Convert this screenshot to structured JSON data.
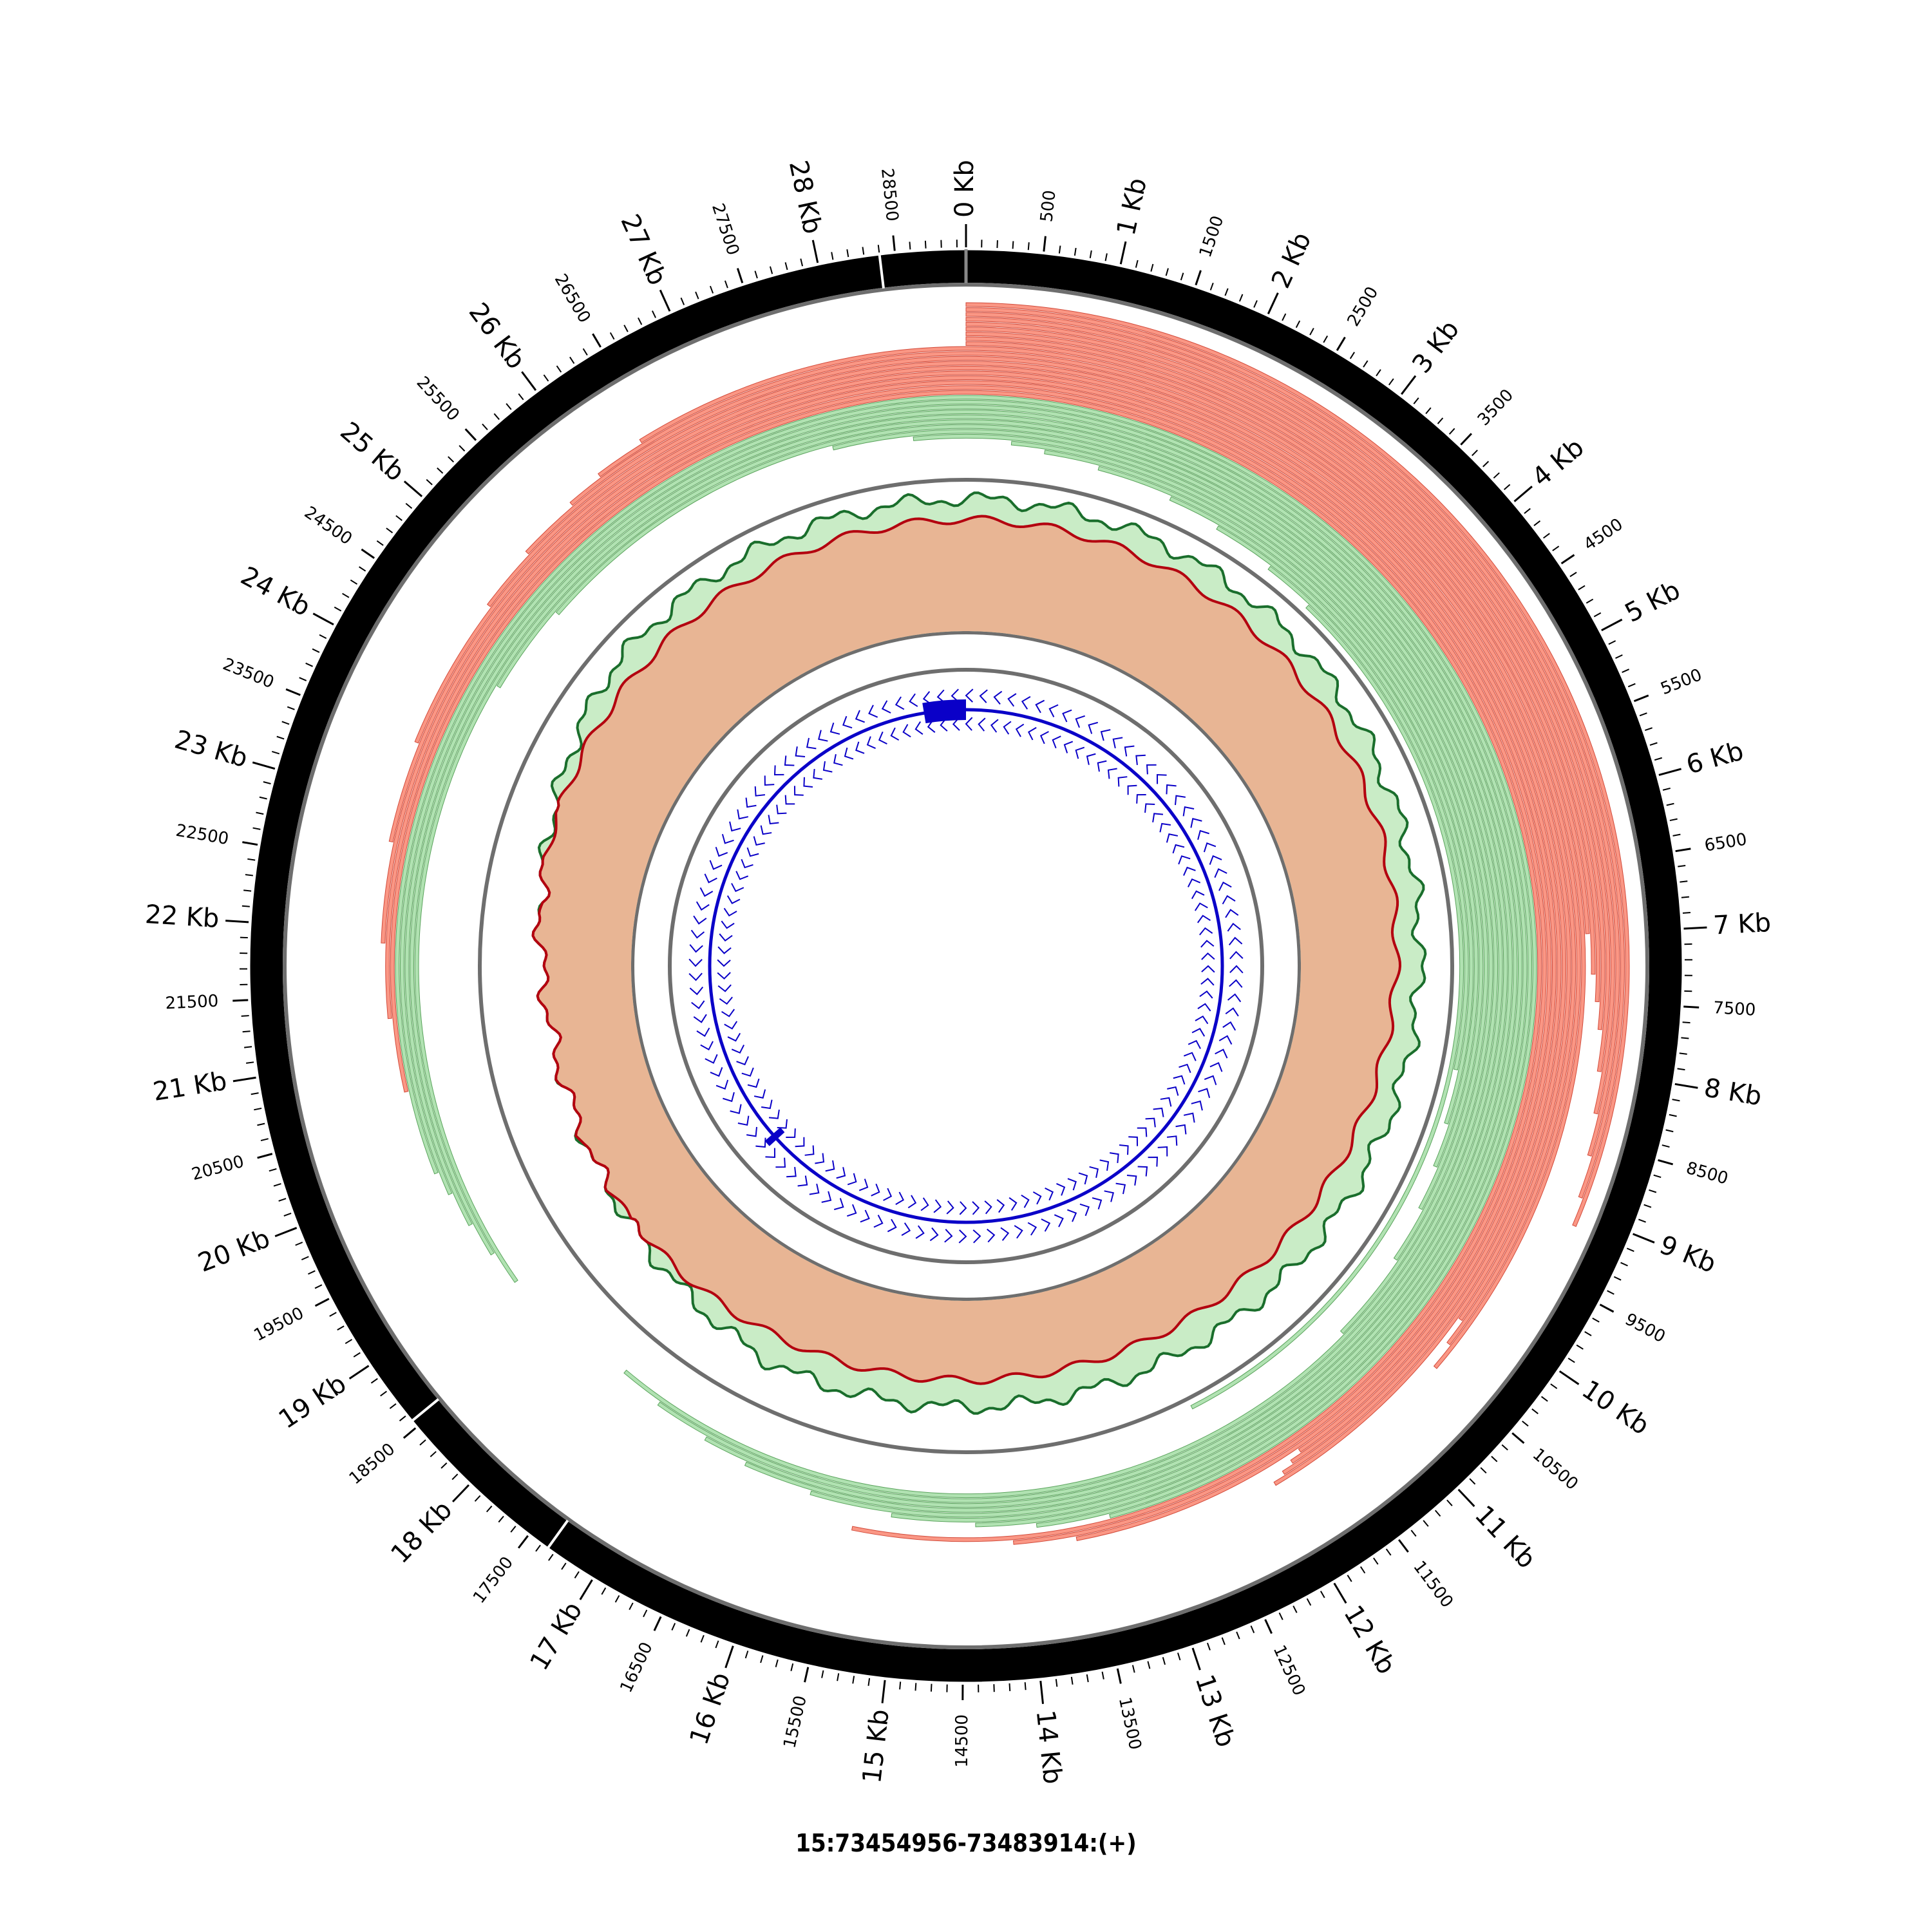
{
  "caption": "15:73454956-73483914:(+)",
  "genome": {
    "length_bp": 28958,
    "major_tick_step_bp": 1000,
    "minor_label_step_bp": 1000,
    "minor_label_offset_bp": 500,
    "major_label_suffix": " Kb",
    "boundary_marks_bp": [
      28400,
      17350,
      18550
    ]
  },
  "major_labels": [
    "0 Kb",
    "1 Kb",
    "2 Kb",
    "3 Kb",
    "4 Kb",
    "5 Kb",
    "6 Kb",
    "7 Kb",
    "8 Kb",
    "9 Kb",
    "10 Kb",
    "11 Kb",
    "12 Kb",
    "13 Kb",
    "14 Kb",
    "15 Kb",
    "16 Kb",
    "17 Kb",
    "18 Kb",
    "19 Kb",
    "20 Kb",
    "21 Kb",
    "22 Kb",
    "23 Kb",
    "24 Kb",
    "25 Kb",
    "26 Kb",
    "27 Kb",
    "28 Kb"
  ],
  "minor_labels": [
    "500",
    "1500",
    "2500",
    "3500",
    "4500",
    "5500",
    "6500",
    "7500",
    "8500",
    "9500",
    "10500",
    "11500",
    "12500",
    "13500",
    "14500",
    "15500",
    "16500",
    "17500",
    "18500",
    "19500",
    "20500",
    "21500",
    "22500",
    "23500",
    "24500",
    "25500",
    "26500",
    "27500",
    "28500"
  ],
  "colors": {
    "ideogram": "#000000",
    "ring_border": "#6e6e6e",
    "read_forward": "#fa8c78",
    "read_forward_stroke": "#d24a3a",
    "read_reverse": "#a9dfaa",
    "read_reverse_stroke": "#5aa35c",
    "coverage_fill": "#e8b594",
    "coverage_line": "#b3000f",
    "coverage_outer_fill": "#c9ecc6",
    "coverage_outer_line": "#1a6e2c",
    "gene": "#0a00c8"
  },
  "chart_data": {
    "type": "circos",
    "region": "15:73454956-73483914:(+)",
    "tracks": [
      {
        "name": "",
        "kind": "ideogram"
      },
      {
        "name": "",
        "kind": "read_arcs",
        "forward_strand_color": "#fa8c78",
        "reverse_strand_color": "#a9dfaa",
        "reads": [
          {
            "strand": "+",
            "start_bp": 0,
            "end_bp": 9100
          },
          {
            "strand": "+",
            "start_bp": 0,
            "end_bp": 8900
          },
          {
            "strand": "+",
            "start_bp": 0,
            "end_bp": 8600
          },
          {
            "strand": "+",
            "start_bp": 0,
            "end_bp": 8300
          },
          {
            "strand": "+",
            "start_bp": 0,
            "end_bp": 8000
          },
          {
            "strand": "+",
            "start_bp": 0,
            "end_bp": 7700
          },
          {
            "strand": "+",
            "start_bp": 0,
            "end_bp": 7500
          },
          {
            "strand": "+",
            "start_bp": 0,
            "end_bp": 7300
          },
          {
            "strand": "+",
            "start_bp": 0,
            "end_bp": 7000
          },
          {
            "strand": "+",
            "start_bp": 26400,
            "end_bp": 10500
          },
          {
            "strand": "+",
            "start_bp": 26000,
            "end_bp": 10300
          },
          {
            "strand": "+",
            "start_bp": 25700,
            "end_bp": 10100
          },
          {
            "strand": "+",
            "start_bp": 25200,
            "end_bp": 12000
          },
          {
            "strand": "+",
            "start_bp": 24700,
            "end_bp": 11900
          },
          {
            "strand": "+",
            "start_bp": 23500,
            "end_bp": 11800
          },
          {
            "strand": "+",
            "start_bp": 22700,
            "end_bp": 11700
          },
          {
            "strand": "+",
            "start_bp": 21900,
            "end_bp": 13600
          },
          {
            "strand": "+",
            "start_bp": 21300,
            "end_bp": 14100
          },
          {
            "strand": "+",
            "start_bp": 20700,
            "end_bp": 15400
          },
          {
            "strand": "-",
            "start_bp": 20000,
            "end_bp": 13300
          },
          {
            "strand": "-",
            "start_bp": 19800,
            "end_bp": 13900
          },
          {
            "strand": "-",
            "start_bp": 19500,
            "end_bp": 14400
          },
          {
            "strand": "-",
            "start_bp": 19200,
            "end_bp": 15100
          },
          {
            "strand": "-",
            "start_bp": 18900,
            "end_bp": 15800
          },
          {
            "strand": "-",
            "start_bp": 24200,
            "end_bp": 16400
          },
          {
            "strand": "-",
            "start_bp": 25000,
            "end_bp": 16800
          },
          {
            "strand": "-",
            "start_bp": 27800,
            "end_bp": 17300
          },
          {
            "strand": "-",
            "start_bp": 28500,
            "end_bp": 17700
          },
          {
            "strand": "-",
            "start_bp": 400,
            "end_bp": 10800
          },
          {
            "strand": "-",
            "start_bp": 700,
            "end_bp": 10000
          },
          {
            "strand": "-",
            "start_bp": 1200,
            "end_bp": 9500
          },
          {
            "strand": "-",
            "start_bp": 1900,
            "end_bp": 9100
          },
          {
            "strand": "-",
            "start_bp": 2400,
            "end_bp": 8700
          },
          {
            "strand": "-",
            "start_bp": 3000,
            "end_bp": 8200
          },
          {
            "strand": "-",
            "start_bp": 3500,
            "end_bp": 12300
          }
        ]
      },
      {
        "name": "",
        "kind": "coverage",
        "series": [
          "forward",
          "total"
        ]
      },
      {
        "name": "",
        "kind": "gene_model",
        "strand": "-",
        "exons_bp": [
          [
            28200,
            28958
          ],
          [
            18300,
            18420
          ]
        ]
      }
    ]
  }
}
